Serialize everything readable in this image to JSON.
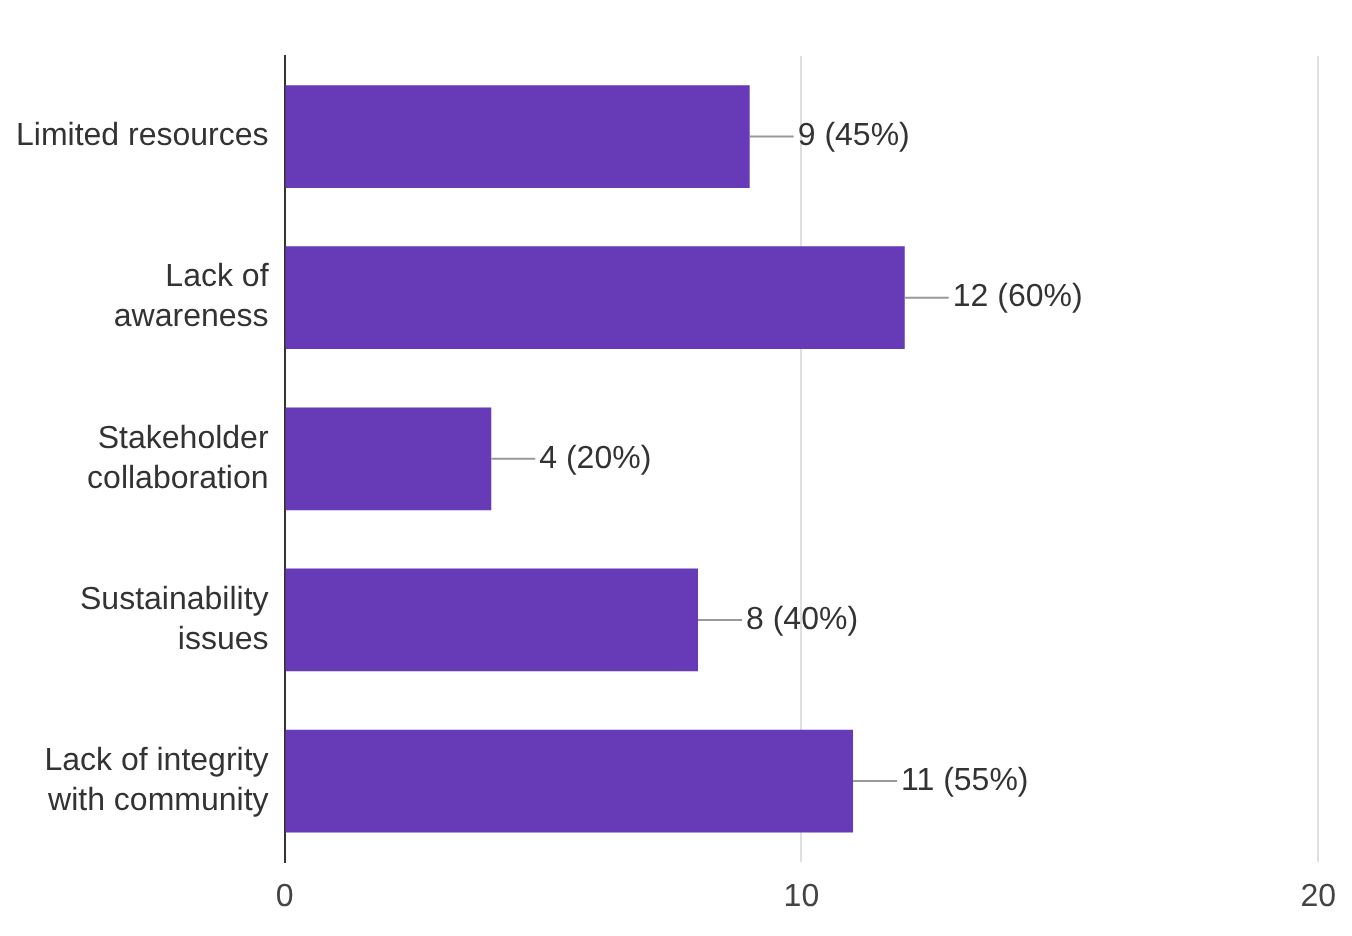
{
  "chart_data": {
    "type": "bar",
    "orientation": "horizontal",
    "categories": [
      "Limited resources",
      "Lack of awareness",
      "Stakeholder collaboration",
      "Sustainability issues",
      "Lack of integrity with community"
    ],
    "values": [
      9,
      12,
      4,
      8,
      11
    ],
    "value_labels": [
      "9 (45%)",
      "12 (60%)",
      "4 (20%)",
      "8 (40%)",
      "11 (55%)"
    ],
    "color": "#673ab7",
    "xlim": [
      0,
      20
    ],
    "xticks": [
      0,
      10,
      20
    ],
    "grid": "x",
    "legend": false
  }
}
